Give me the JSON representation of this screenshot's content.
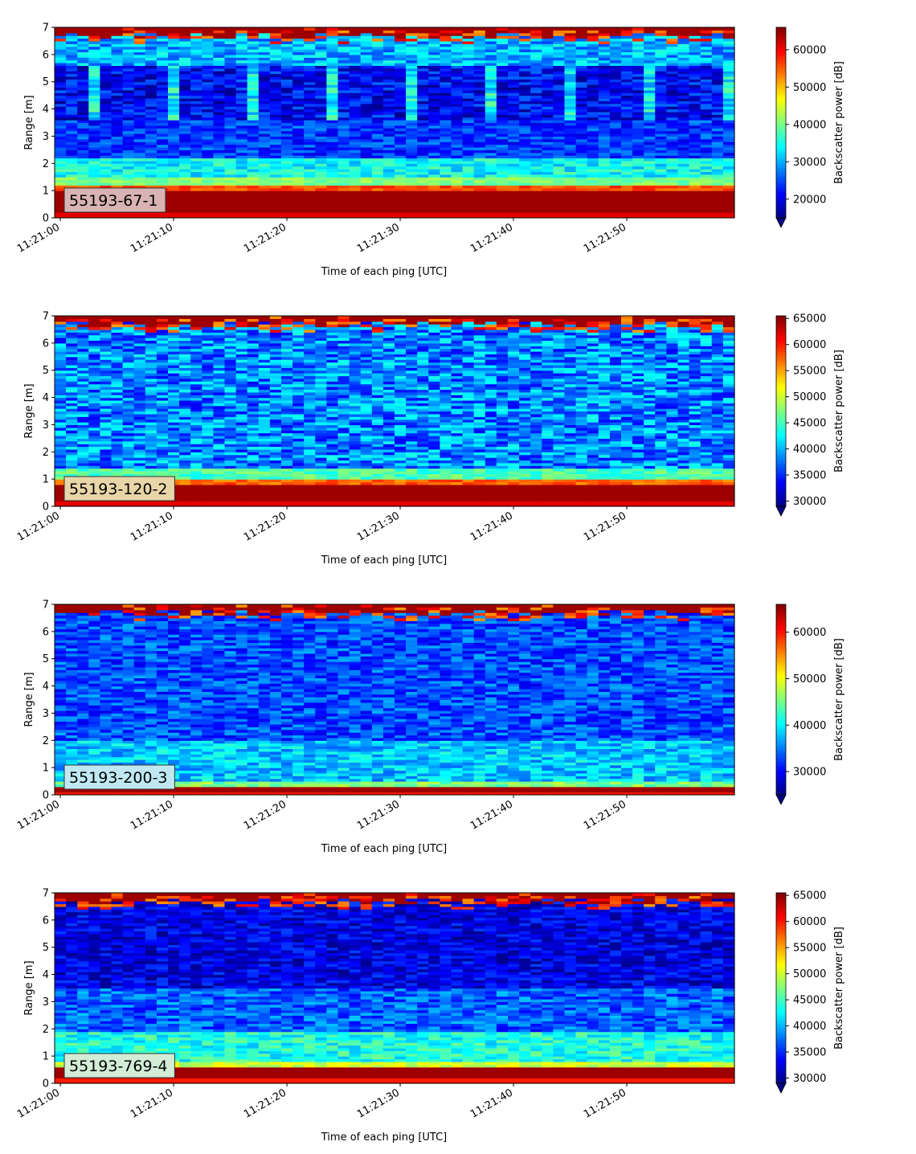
{
  "chart_data": [
    {
      "type": "heatmap",
      "label": "55193-67-1",
      "label_box_color": "#d9b3b3",
      "xlabel": "Time of each ping [UTC]",
      "ylabel": "Range [m]",
      "xticks": [
        "11:21:00",
        "11:21:10",
        "11:21:20",
        "11:21:30",
        "11:21:40",
        "11:21:50"
      ],
      "xlim_seconds": [
        -0.5,
        59.5
      ],
      "yticks": [
        "0",
        "1",
        "2",
        "3",
        "4",
        "5",
        "6",
        "7"
      ],
      "ylim": [
        0,
        7
      ],
      "colorbar": {
        "label": "Backscatter power [dB]",
        "range": [
          15000,
          66000
        ],
        "ticks": [
          "20000",
          "30000",
          "40000",
          "50000",
          "60000"
        ],
        "tick_values": [
          20000,
          30000,
          40000,
          50000,
          60000
        ],
        "extend": "min"
      },
      "profile": "p1"
    },
    {
      "type": "heatmap",
      "label": "55193-120-2",
      "label_box_color": "#e8d5a8",
      "xlabel": "Time of each ping [UTC]",
      "ylabel": "Range [m]",
      "xticks": [
        "11:21:00",
        "11:21:10",
        "11:21:20",
        "11:21:30",
        "11:21:40",
        "11:21:50"
      ],
      "xlim_seconds": [
        -0.5,
        59.5
      ],
      "yticks": [
        "0",
        "1",
        "2",
        "3",
        "4",
        "5",
        "6",
        "7"
      ],
      "ylim": [
        0,
        7
      ],
      "colorbar": {
        "label": "Backscatter power [dB]",
        "range": [
          29000,
          65500
        ],
        "ticks": [
          "30000",
          "35000",
          "40000",
          "45000",
          "50000",
          "55000",
          "60000",
          "65000"
        ],
        "tick_values": [
          30000,
          35000,
          40000,
          45000,
          50000,
          55000,
          60000,
          65000
        ],
        "extend": "min"
      },
      "profile": "p2"
    },
    {
      "type": "heatmap",
      "label": "55193-200-3",
      "label_box_color": "#bfe8f2",
      "xlabel": "Time of each ping [UTC]",
      "ylabel": "Range [m]",
      "xticks": [
        "11:21:00",
        "11:21:10",
        "11:21:20",
        "11:21:30",
        "11:21:40",
        "11:21:50"
      ],
      "xlim_seconds": [
        -0.5,
        59.5
      ],
      "yticks": [
        "0",
        "1",
        "2",
        "3",
        "4",
        "5",
        "6",
        "7"
      ],
      "ylim": [
        0,
        7
      ],
      "colorbar": {
        "label": "Backscatter power [dB]",
        "range": [
          25000,
          66000
        ],
        "ticks": [
          "30000",
          "40000",
          "50000",
          "60000"
        ],
        "tick_values": [
          30000,
          40000,
          50000,
          60000
        ],
        "extend": "min"
      },
      "profile": "p3"
    },
    {
      "type": "heatmap",
      "label": "55193-769-4",
      "label_box_color": "#d2ecd6",
      "xlabel": "Time of each ping [UTC]",
      "ylabel": "Range [m]",
      "xticks": [
        "11:21:00",
        "11:21:10",
        "11:21:20",
        "11:21:30",
        "11:21:40",
        "11:21:50"
      ],
      "xlim_seconds": [
        -0.5,
        59.5
      ],
      "yticks": [
        "0",
        "1",
        "2",
        "3",
        "4",
        "5",
        "6",
        "7"
      ],
      "ylim": [
        0,
        7
      ],
      "colorbar": {
        "label": "Backscatter power [dB]",
        "range": [
          29000,
          65500
        ],
        "ticks": [
          "30000",
          "35000",
          "40000",
          "45000",
          "50000",
          "55000",
          "60000",
          "65000"
        ],
        "tick_values": [
          30000,
          35000,
          40000,
          45000,
          50000,
          55000,
          60000,
          65000
        ],
        "extend": "min"
      },
      "profile": "p4"
    }
  ]
}
